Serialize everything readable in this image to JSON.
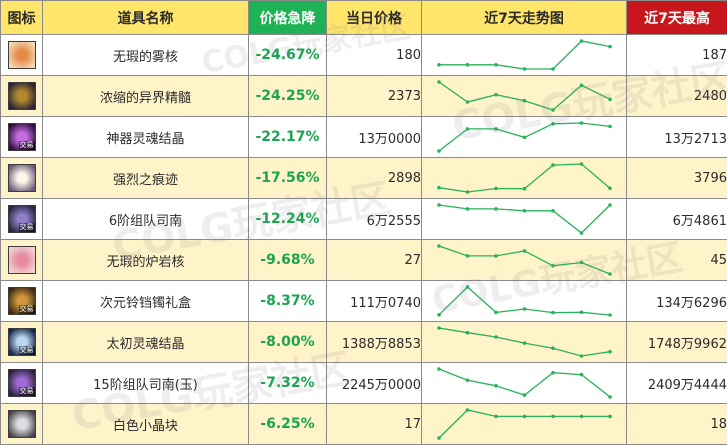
{
  "headers": {
    "icon": "图标",
    "name": "道具名称",
    "drop": "价格急降",
    "price": "当日价格",
    "trend": "近7天走势图",
    "max": "近7天最高"
  },
  "colors": {
    "header_bg": "#ffe66b",
    "drop_header_bg": "#1db354",
    "max_header_bg": "#c8161d",
    "row_alt_bg": "#fff3c9",
    "drop_text": "#1ca54f",
    "trend_line": "#28b25a"
  },
  "watermark": [
    "COLG玩家社区",
    "COLG玩家社区",
    "COLG玩家社区",
    "COLG玩家社区",
    "COLG玩家社区"
  ],
  "items": [
    {
      "icon": "flame-orb-icon",
      "icon_colors": [
        "#f6d9b5",
        "#e48b4a"
      ],
      "trade": "",
      "name": "无瑕的雾核",
      "drop": "-24.67%",
      "price": "180",
      "max": "187",
      "trend": [
        0.66,
        0.66,
        0.66,
        0.63,
        0.63,
        0.83,
        0.79
      ]
    },
    {
      "icon": "dark-orb-icon",
      "icon_colors": [
        "#2a2334",
        "#b3892d"
      ],
      "trade": "",
      "name": "浓缩的异界精髓",
      "drop": "-24.25%",
      "price": "2373",
      "max": "2480",
      "trend": [
        0.92,
        0.62,
        0.73,
        0.64,
        0.5,
        0.87,
        0.66
      ]
    },
    {
      "icon": "purple-soul-icon",
      "icon_colors": [
        "#2a0d3c",
        "#c66be0"
      ],
      "trade": "交易",
      "name": "神器灵魂结晶",
      "drop": "-22.17%",
      "price": "13万0000",
      "max": "13万2713",
      "trend": [
        0.98,
        1.24,
        1.24,
        1.14,
        1.3,
        1.31,
        1.27
      ]
    },
    {
      "icon": "white-burst-icon",
      "icon_colors": [
        "#6a5a7a",
        "#fff6e8"
      ],
      "trade": "",
      "name": "强烈之痕迹",
      "drop": "-17.56%",
      "price": "2898",
      "max": "3796",
      "trend": [
        2920,
        2760,
        2890,
        2880,
        3750,
        3790,
        2895
      ]
    },
    {
      "icon": "dungeon-compass-icon",
      "icon_colors": [
        "#27253d",
        "#8f7ec8"
      ],
      "trade": "交易",
      "name": "6阶组队司南",
      "drop": "-12.24%",
      "price": "6万2555",
      "max": "6万4861",
      "trend": [
        6.48,
        6.44,
        6.44,
        6.42,
        6.42,
        6.19,
        6.48
      ]
    },
    {
      "icon": "pink-core-icon",
      "icon_colors": [
        "#f4d4d6",
        "#e58aa0"
      ],
      "trade": "",
      "name": "无瑕的炉岩核",
      "drop": "-9.68%",
      "price": "27",
      "max": "45",
      "trend": [
        45,
        39,
        39,
        42,
        33,
        35,
        28
      ]
    },
    {
      "icon": "ornate-box-icon",
      "icon_colors": [
        "#3c2a16",
        "#d1963a"
      ],
      "trade": "交易",
      "name": "次元铃铛镯礼盒",
      "drop": "-8.37%",
      "price": "111万0740",
      "max": "134万6296",
      "trend": [
        111.2,
        134.5,
        113.2,
        116.0,
        113.0,
        113.3,
        111.0
      ]
    },
    {
      "icon": "blue-soul-icon",
      "icon_colors": [
        "#17244a",
        "#b8d8f2"
      ],
      "trade": "交易",
      "name": "太初灵魂结晶",
      "drop": "-8.00%",
      "price": "1388万8853",
      "max": "1748万9962",
      "trend": [
        1745,
        1690,
        1640,
        1570,
        1510,
        1420,
        1470
      ]
    },
    {
      "icon": "compass-15-icon",
      "icon_colors": [
        "#2a2036",
        "#a06bd8"
      ],
      "trade": "交易",
      "name": "15阶组队司南(玉)",
      "drop": "-7.32%",
      "price": "2245万0000",
      "max": "2409万4444",
      "trend": [
        2400,
        2340,
        2310,
        2260,
        2380,
        2370,
        2250
      ]
    },
    {
      "icon": "white-cube-icon",
      "icon_colors": [
        "#44444a",
        "#dedee2"
      ],
      "trade": "",
      "name": "白色小晶块",
      "drop": "-6.25%",
      "price": "17",
      "max": "18",
      "trend": [
        14.5,
        18,
        17.2,
        17.2,
        17.2,
        17.2,
        17.2
      ]
    }
  ]
}
